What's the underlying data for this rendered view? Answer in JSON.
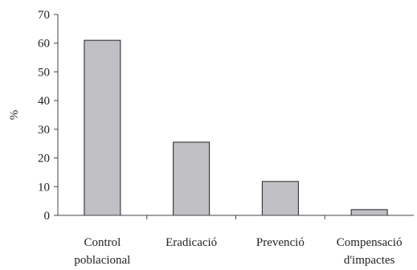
{
  "chart_data": {
    "type": "bar",
    "categories": [
      [
        "Control",
        "poblacional"
      ],
      [
        "Eradicació"
      ],
      [
        "Prevenció"
      ],
      [
        "Compensació",
        "d'impactes"
      ]
    ],
    "values": [
      61,
      25.5,
      11.8,
      2
    ],
    "title": "",
    "xlabel": "",
    "ylabel": "%",
    "ylim": [
      0,
      70
    ],
    "yticks": [
      0,
      10,
      20,
      30,
      40,
      50,
      60,
      70
    ],
    "grid": false,
    "legend": "none",
    "colors": {
      "bar_fill": "#c0c0c4",
      "bar_stroke": "#222222",
      "axis": "#444444"
    }
  }
}
